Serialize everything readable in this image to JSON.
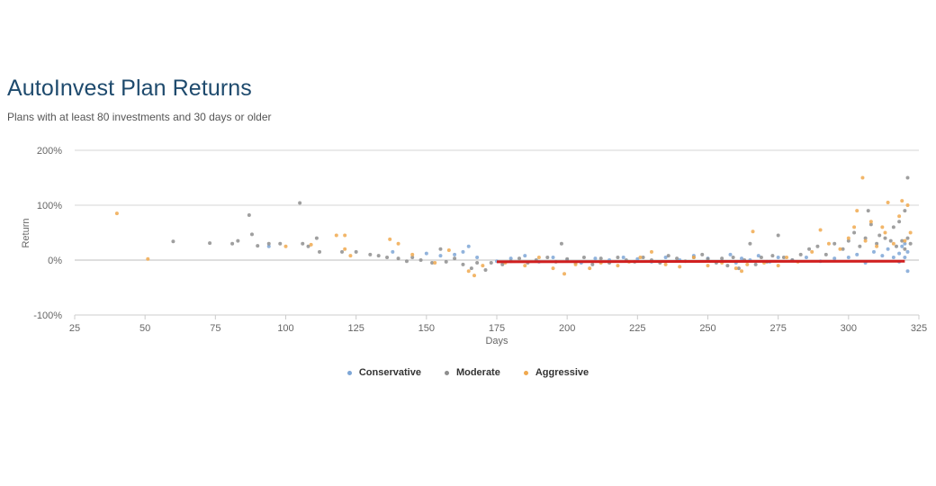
{
  "title": "AutoInvest Plan Returns",
  "subtitle": "Plans with at least 80 investments and 30 days or older",
  "chart_data": {
    "type": "scatter",
    "xlabel": "Days",
    "ylabel": "Return",
    "xlim": [
      25,
      325
    ],
    "ylim": [
      -100,
      200
    ],
    "x_ticks": [
      "25",
      "50",
      "75",
      "100",
      "125",
      "150",
      "175",
      "200",
      "225",
      "250",
      "275",
      "300",
      "325"
    ],
    "y_ticks": [
      "200%",
      "100%",
      "0%",
      "-100%"
    ],
    "grid": "horizontal",
    "legend_position": "bottom-center",
    "series": [
      {
        "name": "Conservative",
        "color": "#7ea6d6",
        "points": [
          [
            94,
            25
          ],
          [
            138,
            15
          ],
          [
            150,
            12
          ],
          [
            155,
            8
          ],
          [
            160,
            10
          ],
          [
            163,
            15
          ],
          [
            165,
            25
          ],
          [
            168,
            5
          ],
          [
            175,
            -2
          ],
          [
            180,
            3
          ],
          [
            185,
            8
          ],
          [
            190,
            -3
          ],
          [
            195,
            5
          ],
          [
            200,
            0
          ],
          [
            205,
            -5
          ],
          [
            210,
            3
          ],
          [
            215,
            0
          ],
          [
            220,
            5
          ],
          [
            225,
            2
          ],
          [
            230,
            -3
          ],
          [
            235,
            5
          ],
          [
            240,
            0
          ],
          [
            245,
            8
          ],
          [
            250,
            3
          ],
          [
            255,
            -2
          ],
          [
            258,
            10
          ],
          [
            260,
            -5
          ],
          [
            262,
            3
          ],
          [
            265,
            0
          ],
          [
            268,
            8
          ],
          [
            272,
            -3
          ],
          [
            275,
            5
          ],
          [
            280,
            0
          ],
          [
            285,
            5
          ],
          [
            290,
            -2
          ],
          [
            295,
            3
          ],
          [
            300,
            5
          ],
          [
            303,
            10
          ],
          [
            306,
            -5
          ],
          [
            309,
            15
          ],
          [
            312,
            8
          ],
          [
            314,
            20
          ],
          [
            316,
            5
          ],
          [
            318,
            12
          ],
          [
            319,
            25
          ],
          [
            320,
            30
          ],
          [
            321,
            -20
          ],
          [
            321,
            15
          ],
          [
            320,
            5
          ],
          [
            318,
            -3
          ]
        ]
      },
      {
        "name": "Moderate",
        "color": "#8e8e8e",
        "points": [
          [
            60,
            34
          ],
          [
            73,
            31
          ],
          [
            81,
            30
          ],
          [
            83,
            35
          ],
          [
            87,
            82
          ],
          [
            88,
            47
          ],
          [
            90,
            26
          ],
          [
            94,
            30
          ],
          [
            98,
            30
          ],
          [
            105,
            104
          ],
          [
            106,
            30
          ],
          [
            108,
            25
          ],
          [
            111,
            40
          ],
          [
            112,
            15
          ],
          [
            120,
            15
          ],
          [
            125,
            15
          ],
          [
            130,
            10
          ],
          [
            133,
            8
          ],
          [
            136,
            5
          ],
          [
            140,
            3
          ],
          [
            143,
            -2
          ],
          [
            145,
            5
          ],
          [
            148,
            0
          ],
          [
            152,
            -5
          ],
          [
            155,
            20
          ],
          [
            157,
            -3
          ],
          [
            160,
            3
          ],
          [
            163,
            -8
          ],
          [
            166,
            -15
          ],
          [
            168,
            -5
          ],
          [
            171,
            -18
          ],
          [
            173,
            -5
          ],
          [
            177,
            -8
          ],
          [
            180,
            -2
          ],
          [
            183,
            3
          ],
          [
            186,
            -5
          ],
          [
            189,
            0
          ],
          [
            193,
            5
          ],
          [
            196,
            -3
          ],
          [
            198,
            30
          ],
          [
            200,
            2
          ],
          [
            203,
            -5
          ],
          [
            206,
            5
          ],
          [
            209,
            -8
          ],
          [
            212,
            3
          ],
          [
            215,
            -5
          ],
          [
            218,
            5
          ],
          [
            221,
            0
          ],
          [
            224,
            -3
          ],
          [
            227,
            5
          ],
          [
            230,
            0
          ],
          [
            233,
            -5
          ],
          [
            236,
            8
          ],
          [
            239,
            3
          ],
          [
            242,
            -2
          ],
          [
            245,
            5
          ],
          [
            248,
            10
          ],
          [
            250,
            2
          ],
          [
            253,
            -5
          ],
          [
            255,
            3
          ],
          [
            257,
            -10
          ],
          [
            259,
            5
          ],
          [
            261,
            -15
          ],
          [
            263,
            0
          ],
          [
            265,
            30
          ],
          [
            267,
            -8
          ],
          [
            269,
            5
          ],
          [
            271,
            -3
          ],
          [
            273,
            8
          ],
          [
            275,
            45
          ],
          [
            277,
            5
          ],
          [
            280,
            0
          ],
          [
            283,
            10
          ],
          [
            286,
            20
          ],
          [
            289,
            25
          ],
          [
            292,
            10
          ],
          [
            295,
            30
          ],
          [
            298,
            20
          ],
          [
            300,
            35
          ],
          [
            302,
            50
          ],
          [
            304,
            25
          ],
          [
            306,
            40
          ],
          [
            307,
            90
          ],
          [
            308,
            65
          ],
          [
            310,
            30
          ],
          [
            311,
            45
          ],
          [
            313,
            40
          ],
          [
            315,
            35
          ],
          [
            316,
            60
          ],
          [
            317,
            25
          ],
          [
            318,
            70
          ],
          [
            319,
            35
          ],
          [
            320,
            90
          ],
          [
            321,
            150
          ],
          [
            321,
            40
          ],
          [
            322,
            30
          ],
          [
            320,
            20
          ]
        ]
      },
      {
        "name": "Aggressive",
        "color": "#f0a94f",
        "points": [
          [
            40,
            85
          ],
          [
            51,
            2
          ],
          [
            100,
            25
          ],
          [
            109,
            28
          ],
          [
            118,
            45
          ],
          [
            121,
            45
          ],
          [
            121,
            20
          ],
          [
            123,
            8
          ],
          [
            137,
            38
          ],
          [
            140,
            30
          ],
          [
            145,
            10
          ],
          [
            153,
            -5
          ],
          [
            158,
            18
          ],
          [
            165,
            -20
          ],
          [
            167,
            -28
          ],
          [
            170,
            -10
          ],
          [
            178,
            -5
          ],
          [
            185,
            -10
          ],
          [
            190,
            5
          ],
          [
            195,
            -15
          ],
          [
            199,
            -25
          ],
          [
            203,
            -8
          ],
          [
            208,
            -15
          ],
          [
            212,
            -5
          ],
          [
            218,
            -10
          ],
          [
            222,
            -3
          ],
          [
            226,
            5
          ],
          [
            230,
            15
          ],
          [
            235,
            -8
          ],
          [
            240,
            -12
          ],
          [
            245,
            5
          ],
          [
            250,
            -10
          ],
          [
            255,
            -5
          ],
          [
            260,
            -15
          ],
          [
            262,
            -20
          ],
          [
            264,
            -8
          ],
          [
            266,
            52
          ],
          [
            270,
            -5
          ],
          [
            275,
            -10
          ],
          [
            278,
            5
          ],
          [
            282,
            -3
          ],
          [
            287,
            15
          ],
          [
            290,
            55
          ],
          [
            293,
            30
          ],
          [
            297,
            20
          ],
          [
            300,
            40
          ],
          [
            302,
            60
          ],
          [
            303,
            90
          ],
          [
            305,
            150
          ],
          [
            306,
            35
          ],
          [
            308,
            70
          ],
          [
            310,
            25
          ],
          [
            312,
            60
          ],
          [
            313,
            50
          ],
          [
            314,
            105
          ],
          [
            316,
            30
          ],
          [
            318,
            80
          ],
          [
            319,
            108
          ],
          [
            320,
            35
          ],
          [
            321,
            100
          ],
          [
            322,
            50
          ]
        ]
      },
      {
        "name": "trend",
        "color": "#d11f1f",
        "points": [
          [
            175,
            -3
          ],
          [
            320,
            -2
          ]
        ]
      }
    ]
  },
  "legend": {
    "items": [
      {
        "label": "Conservative",
        "color": "#7ea6d6"
      },
      {
        "label": "Moderate",
        "color": "#8e8e8e"
      },
      {
        "label": "Aggressive",
        "color": "#f0a94f"
      }
    ]
  }
}
